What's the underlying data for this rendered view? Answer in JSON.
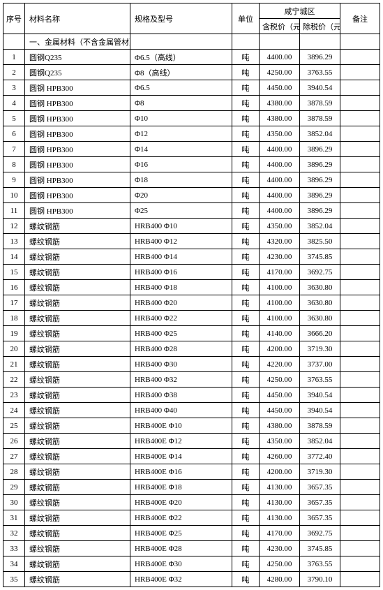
{
  "header": {
    "idx": "序号",
    "name": "材料名称",
    "spec": "规格及型号",
    "unit": "单位",
    "region": "咸宁城区",
    "p1": "含税价（元）",
    "p2": "除税价（元）",
    "remark": "备注"
  },
  "section": "一、金属材料（不含金属管材）",
  "rows": [
    {
      "idx": "1",
      "name": "圆钢Q235",
      "spec": "Φ6.5（高线）",
      "unit": "吨",
      "p1": "4400.00",
      "p2": "3896.29"
    },
    {
      "idx": "2",
      "name": "圆钢Q235",
      "spec": "Φ8（高线）",
      "unit": "吨",
      "p1": "4250.00",
      "p2": "3763.55"
    },
    {
      "idx": "3",
      "name": "圆钢 HPB300",
      "spec": "Φ6.5",
      "unit": "吨",
      "p1": "4450.00",
      "p2": "3940.54"
    },
    {
      "idx": "4",
      "name": "圆钢 HPB300",
      "spec": "Φ8",
      "unit": "吨",
      "p1": "4380.00",
      "p2": "3878.59"
    },
    {
      "idx": "5",
      "name": "圆钢 HPB300",
      "spec": "Φ10",
      "unit": "吨",
      "p1": "4380.00",
      "p2": "3878.59"
    },
    {
      "idx": "6",
      "name": "圆钢 HPB300",
      "spec": "Φ12",
      "unit": "吨",
      "p1": "4350.00",
      "p2": "3852.04"
    },
    {
      "idx": "7",
      "name": "圆钢 HPB300",
      "spec": "Φ14",
      "unit": "吨",
      "p1": "4400.00",
      "p2": "3896.29"
    },
    {
      "idx": "8",
      "name": "圆钢 HPB300",
      "spec": "Φ16",
      "unit": "吨",
      "p1": "4400.00",
      "p2": "3896.29"
    },
    {
      "idx": "9",
      "name": "圆钢 HPB300",
      "spec": "Φ18",
      "unit": "吨",
      "p1": "4400.00",
      "p2": "3896.29"
    },
    {
      "idx": "10",
      "name": "圆钢 HPB300",
      "spec": "Φ20",
      "unit": "吨",
      "p1": "4400.00",
      "p2": "3896.29"
    },
    {
      "idx": "11",
      "name": "圆钢 HPB300",
      "spec": "Φ25",
      "unit": "吨",
      "p1": "4400.00",
      "p2": "3896.29"
    },
    {
      "idx": "12",
      "name": "螺纹钢筋",
      "spec": "HRB400 Φ10",
      "unit": "吨",
      "p1": "4350.00",
      "p2": "3852.04"
    },
    {
      "idx": "13",
      "name": "螺纹钢筋",
      "spec": "HRB400 Φ12",
      "unit": "吨",
      "p1": "4320.00",
      "p2": "3825.50"
    },
    {
      "idx": "14",
      "name": "螺纹钢筋",
      "spec": "HRB400 Φ14",
      "unit": "吨",
      "p1": "4230.00",
      "p2": "3745.85"
    },
    {
      "idx": "15",
      "name": "螺纹钢筋",
      "spec": "HRB400 Φ16",
      "unit": "吨",
      "p1": "4170.00",
      "p2": "3692.75"
    },
    {
      "idx": "16",
      "name": "螺纹钢筋",
      "spec": "HRB400 Φ18",
      "unit": "吨",
      "p1": "4100.00",
      "p2": "3630.80"
    },
    {
      "idx": "17",
      "name": "螺纹钢筋",
      "spec": "HRB400 Φ20",
      "unit": "吨",
      "p1": "4100.00",
      "p2": "3630.80"
    },
    {
      "idx": "18",
      "name": "螺纹钢筋",
      "spec": "HRB400 Φ22",
      "unit": "吨",
      "p1": "4100.00",
      "p2": "3630.80"
    },
    {
      "idx": "19",
      "name": "螺纹钢筋",
      "spec": "HRB400 Φ25",
      "unit": "吨",
      "p1": "4140.00",
      "p2": "3666.20"
    },
    {
      "idx": "20",
      "name": "螺纹钢筋",
      "spec": "HRB400 Φ28",
      "unit": "吨",
      "p1": "4200.00",
      "p2": "3719.30"
    },
    {
      "idx": "21",
      "name": "螺纹钢筋",
      "spec": "HRB400 Φ30",
      "unit": "吨",
      "p1": "4220.00",
      "p2": "3737.00"
    },
    {
      "idx": "22",
      "name": "螺纹钢筋",
      "spec": "HRB400 Φ32",
      "unit": "吨",
      "p1": "4250.00",
      "p2": "3763.55"
    },
    {
      "idx": "23",
      "name": "螺纹钢筋",
      "spec": "HRB400 Φ38",
      "unit": "吨",
      "p1": "4450.00",
      "p2": "3940.54"
    },
    {
      "idx": "24",
      "name": "螺纹钢筋",
      "spec": "HRB400 Φ40",
      "unit": "吨",
      "p1": "4450.00",
      "p2": "3940.54"
    },
    {
      "idx": "25",
      "name": "螺纹钢筋",
      "spec": "HRB400E Φ10",
      "unit": "吨",
      "p1": "4380.00",
      "p2": "3878.59"
    },
    {
      "idx": "26",
      "name": "螺纹钢筋",
      "spec": "HRB400E Φ12",
      "unit": "吨",
      "p1": "4350.00",
      "p2": "3852.04"
    },
    {
      "idx": "27",
      "name": "螺纹钢筋",
      "spec": "HRB400E Φ14",
      "unit": "吨",
      "p1": "4260.00",
      "p2": "3772.40"
    },
    {
      "idx": "28",
      "name": "螺纹钢筋",
      "spec": "HRB400E Φ16",
      "unit": "吨",
      "p1": "4200.00",
      "p2": "3719.30"
    },
    {
      "idx": "29",
      "name": "螺纹钢筋",
      "spec": "HRB400E Φ18",
      "unit": "吨",
      "p1": "4130.00",
      "p2": "3657.35"
    },
    {
      "idx": "30",
      "name": "螺纹钢筋",
      "spec": "HRB400E Φ20",
      "unit": "吨",
      "p1": "4130.00",
      "p2": "3657.35"
    },
    {
      "idx": "31",
      "name": "螺纹钢筋",
      "spec": "HRB400E Φ22",
      "unit": "吨",
      "p1": "4130.00",
      "p2": "3657.35"
    },
    {
      "idx": "32",
      "name": "螺纹钢筋",
      "spec": "HRB400E Φ25",
      "unit": "吨",
      "p1": "4170.00",
      "p2": "3692.75"
    },
    {
      "idx": "33",
      "name": "螺纹钢筋",
      "spec": "HRB400E Φ28",
      "unit": "吨",
      "p1": "4230.00",
      "p2": "3745.85"
    },
    {
      "idx": "34",
      "name": "螺纹钢筋",
      "spec": "HRB400E Φ30",
      "unit": "吨",
      "p1": "4250.00",
      "p2": "3763.55"
    },
    {
      "idx": "35",
      "name": "螺纹钢筋",
      "spec": "HRB400E Φ32",
      "unit": "吨",
      "p1": "4280.00",
      "p2": "3790.10"
    }
  ]
}
